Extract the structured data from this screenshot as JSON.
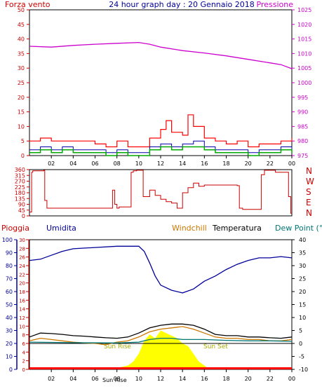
{
  "header": {
    "title": "24 hour graph day : 20 Gennaio 2018",
    "left_label": "Forza vento",
    "right_label": "Pressione"
  },
  "direction_labels": [
    "N",
    "W",
    "S",
    "E",
    "N"
  ],
  "bottom_legend": {
    "rain": "Pioggia",
    "humidity": "Umidita",
    "windchill": "Windchill",
    "temperature": "Temperatura",
    "dewpoint": "Dew Point (°C"
  },
  "annotations": {
    "sunrise": "Sun Rise",
    "sunset": "Sun Set",
    "sunrise_bottom": "Sun Rise"
  },
  "colors": {
    "wind_speed": "#ff0000",
    "wind_gust": "#00aa00",
    "wind_avg": "#0000aa",
    "pressure": "#cc00cc",
    "direction": "#cc0000",
    "humidity": "#000099",
    "temperature": "#000000",
    "windchill": "#cc7700",
    "dewpoint": "#007777",
    "rain": "#ff0000",
    "solar": "#ffff00",
    "left_axis": "#cc0000",
    "hum_axis": "#000099"
  },
  "chart_data": [
    {
      "type": "line",
      "name": "wind_pressure",
      "x_ticks": [
        "02",
        "04",
        "06",
        "08",
        "10",
        "12",
        "14",
        "16",
        "18",
        "20",
        "22",
        "00"
      ],
      "wind_axis": [
        0,
        5,
        10,
        15,
        20,
        25,
        30,
        35,
        40,
        45,
        50
      ],
      "pressure_axis": [
        975,
        980,
        985,
        990,
        995,
        1000,
        1005,
        1010,
        1015,
        1020,
        1025
      ],
      "wind_ylim": [
        0,
        50
      ],
      "pressure_ylim": [
        975,
        1025
      ],
      "pressure": {
        "hours": [
          0,
          2,
          4,
          6,
          8,
          10,
          11,
          12,
          14,
          16,
          18,
          20,
          22,
          23,
          24
        ],
        "values": [
          1012.5,
          1012.2,
          1012.8,
          1013.2,
          1013.5,
          1013.8,
          1013.2,
          1012.2,
          1011.0,
          1010.2,
          1009.2,
          1008.0,
          1006.8,
          1006.2,
          1004.8
        ]
      },
      "wind_gust": {
        "hours": [
          0,
          1,
          2,
          3,
          4,
          5,
          6,
          7,
          8,
          9,
          10,
          11,
          12,
          12.5,
          13,
          14,
          14.5,
          15,
          16,
          17,
          18,
          19,
          20,
          21,
          22,
          23,
          24
        ],
        "values": [
          5,
          6,
          5,
          5,
          5,
          5,
          4,
          3,
          5,
          3,
          3,
          6,
          9,
          12,
          8,
          7,
          14,
          10,
          6,
          5,
          4,
          5,
          3,
          4,
          4,
          5,
          6
        ]
      },
      "wind_avg": {
        "hours": [
          0,
          1,
          2,
          3,
          4,
          5,
          6,
          7,
          8,
          9,
          10,
          11,
          12,
          13,
          14,
          15,
          16,
          17,
          18,
          19,
          20,
          21,
          22,
          23,
          24
        ],
        "values": [
          2,
          3,
          2,
          3,
          2,
          2,
          2,
          1,
          2,
          1,
          1,
          3,
          4,
          3,
          4,
          5,
          3,
          2,
          2,
          2,
          1,
          2,
          2,
          3,
          2
        ]
      },
      "wind_speed": {
        "hours": [
          0,
          1,
          2,
          3,
          4,
          5,
          6,
          7,
          8,
          9,
          10,
          11,
          12,
          13,
          14,
          15,
          16,
          17,
          18,
          19,
          20,
          21,
          22,
          23,
          24
        ],
        "values": [
          1,
          2,
          1,
          2,
          1,
          1,
          1,
          0,
          1,
          0,
          0,
          2,
          3,
          2,
          3,
          3,
          2,
          1,
          1,
          1,
          0,
          1,
          1,
          2,
          1
        ]
      }
    },
    {
      "type": "line",
      "name": "wind_direction",
      "y_axis": [
        0,
        45,
        90,
        135,
        180,
        225,
        270,
        315,
        360
      ],
      "ylim": [
        0,
        360
      ],
      "hours": [
        0,
        0.2,
        0.3,
        1.3,
        1.4,
        1.6,
        7.5,
        7.6,
        7.8,
        8,
        8.2,
        9.2,
        9.3,
        9.5,
        9.8,
        10.2,
        10.4,
        11,
        11.5,
        12,
        12.5,
        13,
        13.5,
        14,
        14.5,
        15,
        15.5,
        16,
        17,
        18,
        19,
        19.2,
        19.5,
        21,
        21.2,
        21.5,
        22,
        22.5,
        23.5,
        23.7,
        23.9
      ],
      "values": [
        30,
        340,
        350,
        355,
        120,
        60,
        60,
        200,
        90,
        60,
        70,
        70,
        340,
        350,
        355,
        355,
        150,
        200,
        160,
        130,
        110,
        100,
        60,
        180,
        220,
        255,
        230,
        240,
        240,
        240,
        235,
        60,
        50,
        50,
        320,
        355,
        355,
        340,
        340,
        150,
        20
      ]
    },
    {
      "type": "line",
      "name": "temperature_humidity",
      "x_ticks": [
        "02",
        "04",
        "06",
        "08",
        "10",
        "12",
        "14",
        "16",
        "18",
        "20",
        "22",
        "00"
      ],
      "humidity_axis": [
        0,
        10,
        20,
        30,
        40,
        50,
        60,
        70,
        80,
        90,
        100
      ],
      "rain_axis": [
        0,
        2,
        4,
        6,
        8,
        10,
        12,
        14,
        16,
        18,
        20,
        22,
        24,
        26,
        28,
        30
      ],
      "temp_axis": [
        -10,
        -5,
        0,
        5,
        10,
        15,
        20,
        25,
        30,
        35,
        40
      ],
      "temp_ylim": [
        -10,
        40
      ],
      "humidity": {
        "hours": [
          0,
          1,
          2,
          3,
          4,
          6,
          8,
          10,
          10.5,
          11,
          11.5,
          12,
          13,
          14,
          15,
          16,
          17,
          18,
          19,
          20,
          21,
          22,
          23,
          24
        ],
        "values": [
          84,
          85,
          88,
          91,
          93,
          94,
          95,
          95,
          91,
          82,
          72,
          65,
          61,
          59,
          62,
          68,
          72,
          77,
          81,
          84,
          86,
          86,
          87,
          86
        ]
      },
      "temperature": {
        "hours": [
          0,
          1,
          2,
          3,
          4,
          5,
          6,
          7,
          8,
          9,
          10,
          11,
          12,
          13,
          14,
          15,
          16,
          17,
          18,
          19,
          20,
          21,
          22,
          23,
          24
        ],
        "values": [
          2.5,
          4,
          3.8,
          3.5,
          3,
          2.8,
          2.5,
          2.2,
          2,
          2.5,
          4,
          6,
          7,
          7.5,
          7.5,
          7,
          5.5,
          3.5,
          3,
          3,
          2.5,
          2.5,
          2.2,
          2,
          2.5
        ]
      },
      "windchill": {
        "hours": [
          0,
          1,
          2,
          3,
          4,
          5,
          6,
          7,
          8,
          9,
          10,
          11,
          12,
          13,
          14,
          15,
          16,
          17,
          18,
          19,
          20,
          21,
          22,
          23,
          24
        ],
        "values": [
          1,
          2,
          1.5,
          1,
          0.5,
          0.2,
          0,
          -0.5,
          0.5,
          1,
          2.5,
          4.5,
          5.5,
          6,
          6.5,
          5.5,
          4,
          2.5,
          2,
          2,
          1.5,
          1.5,
          1,
          1,
          1.5
        ]
      },
      "dewpoint": {
        "hours": [
          0,
          4,
          8,
          10,
          11,
          12,
          13,
          14,
          16,
          18,
          20,
          22,
          24
        ],
        "values": [
          0.5,
          0.3,
          0.2,
          0.5,
          1.5,
          2,
          2,
          1.5,
          1.5,
          1.2,
          1,
          1,
          0.8
        ]
      },
      "solar": {
        "hours": [
          7.5,
          8,
          8.5,
          9,
          9.5,
          10,
          10.5,
          11,
          11.5,
          12,
          12.5,
          13,
          13.5,
          14,
          14.5,
          15,
          15.5,
          16,
          16.5
        ],
        "values": [
          0,
          0.5,
          1,
          1.5,
          3,
          6,
          11,
          13.5,
          12,
          15,
          14,
          13,
          12,
          10,
          9,
          6,
          3,
          1.5,
          0
        ]
      }
    }
  ]
}
